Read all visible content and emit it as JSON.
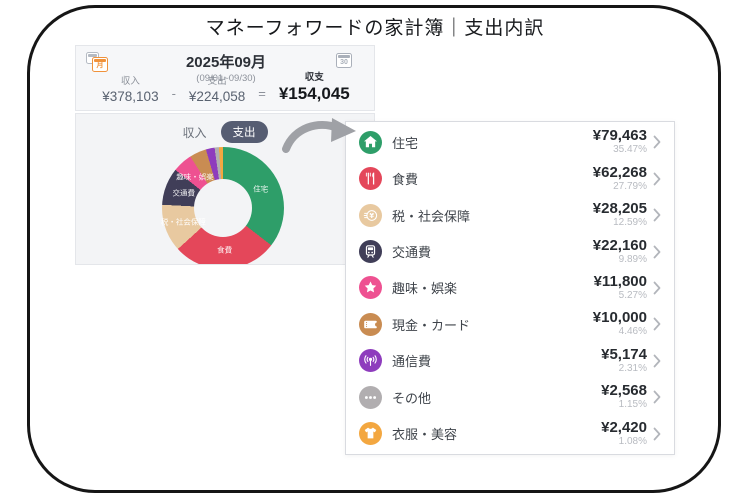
{
  "title": "マネーフォワードの家計簿｜支出内訳",
  "summary": {
    "month_title": "2025年09月",
    "month_range": "(09/01~09/30)",
    "calendar_month_char": "月",
    "calendar_back_char": "日",
    "calendar_day": "30",
    "income_label": "収入",
    "income_value": "¥378,103",
    "minus_sign": "-",
    "expense_label": "支出",
    "expense_value": "¥224,058",
    "equals_sign": "=",
    "balance_label": "収支",
    "balance_value": "¥154,045"
  },
  "toggle": {
    "income": "収入",
    "expense": "支出",
    "active": "支出",
    "active_bg": "#565d72"
  },
  "chart_data": {
    "type": "pie",
    "donut": true,
    "title": "支出内訳 2025年09月",
    "legend_position": "none",
    "categories": [
      "住宅",
      "食費",
      "税・社会保障",
      "交通費",
      "趣味・娯楽",
      "現金・カード",
      "通信費",
      "その他",
      "衣服・美容"
    ],
    "values": [
      79463,
      62268,
      28205,
      22160,
      11800,
      10000,
      5174,
      2568,
      2420
    ],
    "percentages": [
      35.47,
      27.79,
      12.59,
      9.89,
      5.27,
      4.46,
      2.31,
      1.15,
      1.08
    ],
    "colors": [
      "#2e9e69",
      "#e4475a",
      "#e8c9a0",
      "#403e58",
      "#ee5191",
      "#c98c52",
      "#8e3cbd",
      "#b1aeb0",
      "#f3a740"
    ],
    "slice_label_min_percent": 5,
    "start_angle_deg": 0,
    "direction": "clockwise"
  },
  "list": {
    "items": [
      {
        "label": "住宅",
        "amount": "¥79,463",
        "percent": "35.47%",
        "icon": "home-icon",
        "color": "#2e9e69"
      },
      {
        "label": "食費",
        "amount": "¥62,268",
        "percent": "27.79%",
        "icon": "utensils-icon",
        "color": "#e4475a"
      },
      {
        "label": "税・社会保障",
        "amount": "¥28,205",
        "percent": "12.59%",
        "icon": "coin-icon",
        "color": "#e8c9a0"
      },
      {
        "label": "交通費",
        "amount": "¥22,160",
        "percent": "9.89%",
        "icon": "train-icon",
        "color": "#403e58"
      },
      {
        "label": "趣味・娯楽",
        "amount": "¥11,800",
        "percent": "5.27%",
        "icon": "star-icon",
        "color": "#ee5191"
      },
      {
        "label": "現金・カード",
        "amount": "¥10,000",
        "percent": "4.46%",
        "icon": "wallet-icon",
        "color": "#c98c52"
      },
      {
        "label": "通信費",
        "amount": "¥5,174",
        "percent": "2.31%",
        "icon": "antenna-icon",
        "color": "#8e3cbd"
      },
      {
        "label": "その他",
        "amount": "¥2,568",
        "percent": "1.15%",
        "icon": "ellipsis-icon",
        "color": "#b1aeb0"
      },
      {
        "label": "衣服・美容",
        "amount": "¥2,420",
        "percent": "1.08%",
        "icon": "tshirt-icon",
        "color": "#f3a740"
      }
    ]
  }
}
